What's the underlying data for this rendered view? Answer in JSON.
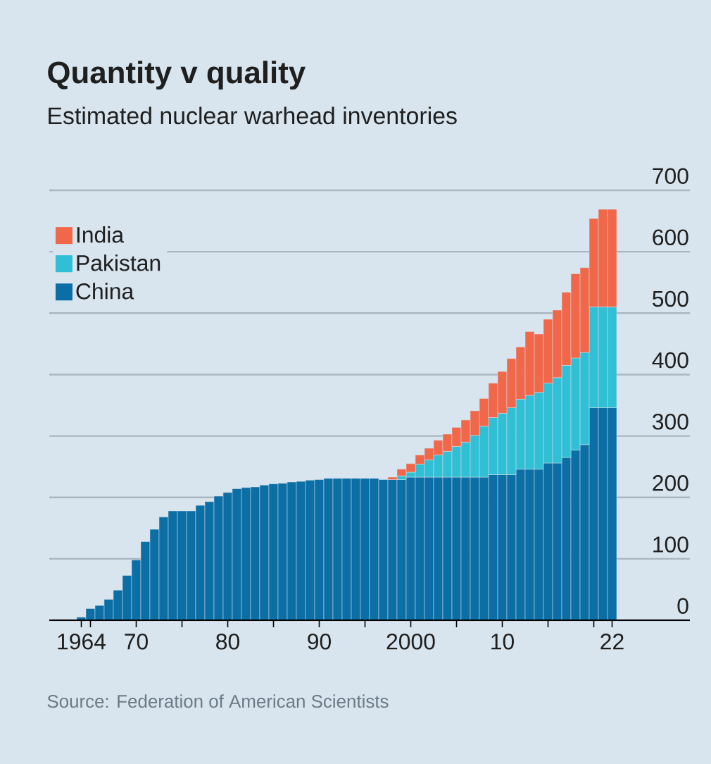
{
  "chart_data": {
    "type": "bar",
    "stacked": true,
    "title": "Quantity v quality",
    "subtitle": "Estimated nuclear warhead inventories",
    "annotations": [
      "Source: Federation of American Scientists"
    ],
    "x": [
      1964,
      1965,
      1966,
      1967,
      1968,
      1969,
      1970,
      1971,
      1972,
      1973,
      1974,
      1975,
      1976,
      1977,
      1978,
      1979,
      1980,
      1981,
      1982,
      1983,
      1984,
      1985,
      1986,
      1987,
      1988,
      1989,
      1990,
      1991,
      1992,
      1993,
      1994,
      1995,
      1996,
      1997,
      1998,
      1999,
      2000,
      2001,
      2002,
      2003,
      2004,
      2005,
      2006,
      2007,
      2008,
      2009,
      2010,
      2011,
      2012,
      2013,
      2014,
      2015,
      2016,
      2017,
      2018,
      2019,
      2020,
      2021,
      2022
    ],
    "series": [
      {
        "name": "China",
        "color": "#0b6ea5",
        "values": [
          5,
          19,
          24,
          34,
          49,
          73,
          98,
          128,
          148,
          168,
          178,
          178,
          178,
          187,
          193,
          202,
          208,
          214,
          216,
          217,
          220,
          222,
          223,
          225,
          226,
          228,
          229,
          231,
          231,
          231,
          231,
          231,
          231,
          229,
          229,
          229,
          233,
          233,
          233,
          233,
          233,
          233,
          233,
          233,
          233,
          237,
          237,
          237,
          246,
          246,
          246,
          256,
          256,
          265,
          277,
          286,
          346,
          346,
          346
        ]
      },
      {
        "name": "Pakistan",
        "color": "#30bfd5",
        "values": [
          null,
          null,
          null,
          null,
          null,
          null,
          null,
          null,
          null,
          null,
          null,
          null,
          null,
          null,
          null,
          null,
          null,
          null,
          null,
          null,
          null,
          null,
          null,
          null,
          null,
          null,
          null,
          null,
          null,
          null,
          null,
          null,
          null,
          null,
          null,
          6,
          8,
          21,
          28,
          36,
          42,
          50,
          57,
          68,
          83,
          93,
          100,
          109,
          114,
          120,
          125,
          130,
          139,
          150,
          150,
          150,
          164,
          164,
          164
        ]
      },
      {
        "name": "India",
        "color": "#f1674a",
        "values": [
          null,
          null,
          null,
          null,
          null,
          null,
          null,
          null,
          null,
          null,
          null,
          null,
          null,
          null,
          null,
          null,
          null,
          null,
          null,
          null,
          null,
          null,
          null,
          null,
          null,
          null,
          null,
          null,
          null,
          null,
          null,
          null,
          null,
          null,
          4,
          11,
          14,
          15,
          19,
          24,
          28,
          31,
          36,
          40,
          45,
          56,
          68,
          80,
          85,
          104,
          95,
          104,
          110,
          119,
          137,
          138,
          144,
          159,
          159
        ]
      }
    ],
    "xlim": [
      1960.5,
      2030.5
    ],
    "xticks": [
      1964,
      {
        "value": 1965,
        "label": null
      },
      {
        "value": 1970,
        "label": "70"
      },
      {
        "value": 1975,
        "label": null
      },
      {
        "value": 1980,
        "label": "80"
      },
      {
        "value": 1985,
        "label": null
      },
      {
        "value": 1990,
        "label": "90"
      },
      {
        "value": 1995,
        "label": null
      },
      2000,
      {
        "value": 2005,
        "label": null
      },
      {
        "value": 2010,
        "label": "10"
      },
      {
        "value": 2015,
        "label": null
      },
      {
        "value": 2020,
        "label": null
      },
      {
        "value": 2022,
        "label": "22"
      }
    ],
    "ylim": [
      0,
      700
    ],
    "yticks": [
      0,
      100,
      200,
      300,
      400,
      500,
      600,
      700
    ],
    "grid": "y",
    "legend": "top left"
  }
}
